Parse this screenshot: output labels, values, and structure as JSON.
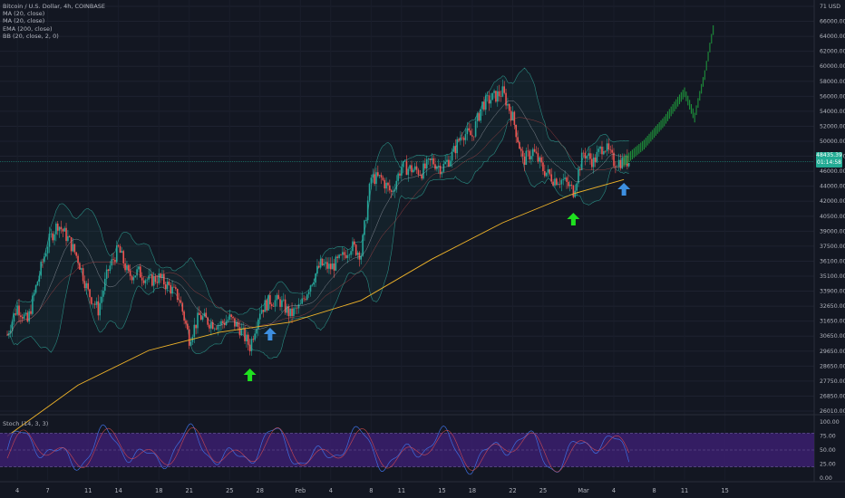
{
  "chart_title": "Bitcoin / U.S. Dollar, 4h, COINBASE",
  "indicators": [
    "MA (20, close)",
    "MA (20, close)",
    "EMA (200, close)",
    "BB (20, close, 2, 0)"
  ],
  "stoch_label": "Stoch (14, 3, 3)",
  "axis_currency": "USD",
  "price_badge": {
    "price": "48435.39",
    "time": "01:14:58"
  },
  "colors": {
    "up": "#26a69a",
    "down": "#ef5350",
    "ema": "#f0b429",
    "bb": "#2a8c83",
    "projection": "#1e8f3a",
    "arrow_green": "#1fe01f",
    "arrow_blue": "#3d8fe0",
    "stoch_k": "#3e6ee0",
    "stoch_d": "#ef5350",
    "stoch_band": "#3b1f6e"
  },
  "chart_data": {
    "type": "candlestick",
    "title": "Bitcoin / U.S. Dollar, 4h, COINBASE",
    "y_ticks": [
      "71 USD",
      "66000.00",
      "64000.00",
      "62000.00",
      "60000.00",
      "58000.00",
      "56000.00",
      "54000.00",
      "52000.00",
      "50000.00",
      "48000.00",
      "46000.00",
      "44000.00",
      "42000.00",
      "40500.00",
      "39000.00",
      "37500.00",
      "36100.00",
      "35100.00",
      "33900.00",
      "32650.00",
      "31650.00",
      "30650.00",
      "29650.00",
      "28650.00",
      "27750.00",
      "26850.00",
      "26010.00"
    ],
    "x_ticks": [
      "4",
      "7",
      "11",
      "14",
      "18",
      "21",
      "25",
      "28",
      "Feb",
      "4",
      "8",
      "11",
      "15",
      "18",
      "22",
      "25",
      "Mar",
      "4",
      "8",
      "11",
      "15"
    ],
    "ylim": [
      26010,
      71000
    ],
    "y_scale": "log",
    "price_path": [
      {
        "x": "3 Jan",
        "y": 31500
      },
      {
        "x": "4 Jan",
        "y": 33800
      },
      {
        "x": "5 Jan",
        "y": 32500
      },
      {
        "x": "6 Jan",
        "y": 36000
      },
      {
        "x": "7 Jan",
        "y": 39500
      },
      {
        "x": "8 Jan",
        "y": 41500
      },
      {
        "x": "9 Jan",
        "y": 40000
      },
      {
        "x": "10 Jan",
        "y": 38000
      },
      {
        "x": "11 Jan",
        "y": 35000
      },
      {
        "x": "12 Jan",
        "y": 33500
      },
      {
        "x": "13 Jan",
        "y": 37000
      },
      {
        "x": "14 Jan",
        "y": 39000
      },
      {
        "x": "15 Jan",
        "y": 36500
      },
      {
        "x": "16 Jan",
        "y": 36800
      },
      {
        "x": "17 Jan",
        "y": 36000
      },
      {
        "x": "18 Jan",
        "y": 36300
      },
      {
        "x": "19 Jan",
        "y": 35500
      },
      {
        "x": "20 Jan",
        "y": 34500
      },
      {
        "x": "21 Jan",
        "y": 31200
      },
      {
        "x": "22 Jan",
        "y": 33000
      },
      {
        "x": "23 Jan",
        "y": 32500
      },
      {
        "x": "24 Jan",
        "y": 32300
      },
      {
        "x": "25 Jan",
        "y": 32800
      },
      {
        "x": "26 Jan",
        "y": 32000
      },
      {
        "x": "27 Jan",
        "y": 30600
      },
      {
        "x": "28 Jan",
        "y": 33500
      },
      {
        "x": "29 Jan",
        "y": 34300
      },
      {
        "x": "30 Jan",
        "y": 34200
      },
      {
        "x": "31 Jan",
        "y": 33100
      },
      {
        "x": "1 Feb",
        "y": 33800
      },
      {
        "x": "2 Feb",
        "y": 35800
      },
      {
        "x": "3 Feb",
        "y": 37500
      },
      {
        "x": "4 Feb",
        "y": 37200
      },
      {
        "x": "5 Feb",
        "y": 38000
      },
      {
        "x": "6 Feb",
        "y": 39300
      },
      {
        "x": "7 Feb",
        "y": 38500
      },
      {
        "x": "8 Feb",
        "y": 46500
      },
      {
        "x": "9 Feb",
        "y": 46400
      },
      {
        "x": "10 Feb",
        "y": 44800
      },
      {
        "x": "11 Feb",
        "y": 47800
      },
      {
        "x": "12 Feb",
        "y": 47500
      },
      {
        "x": "13 Feb",
        "y": 47200
      },
      {
        "x": "14 Feb",
        "y": 48500
      },
      {
        "x": "15 Feb",
        "y": 47600
      },
      {
        "x": "16 Feb",
        "y": 49200
      },
      {
        "x": "17 Feb",
        "y": 52000
      },
      {
        "x": "18 Feb",
        "y": 51600
      },
      {
        "x": "19 Feb",
        "y": 55800
      },
      {
        "x": "20 Feb",
        "y": 56700
      },
      {
        "x": "21 Feb",
        "y": 57500
      },
      {
        "x": "22 Feb",
        "y": 54000
      },
      {
        "x": "23 Feb",
        "y": 48500
      },
      {
        "x": "24 Feb",
        "y": 49700
      },
      {
        "x": "25 Feb",
        "y": 47500
      },
      {
        "x": "26 Feb",
        "y": 46400
      },
      {
        "x": "27 Feb",
        "y": 46200
      },
      {
        "x": "28 Feb",
        "y": 45000
      },
      {
        "x": "1 Mar",
        "y": 49500
      },
      {
        "x": "2 Mar",
        "y": 48400
      },
      {
        "x": "3 Mar",
        "y": 50500
      },
      {
        "x": "4 Mar",
        "y": 48400
      },
      {
        "x": "5 Mar",
        "y": 48435
      }
    ],
    "ema_200": [
      {
        "x": "3 Jan",
        "y": 24500
      },
      {
        "x": "10 Jan",
        "y": 27800
      },
      {
        "x": "17 Jan",
        "y": 30300
      },
      {
        "x": "24 Jan",
        "y": 31700
      },
      {
        "x": "31 Jan",
        "y": 32500
      },
      {
        "x": "7 Feb",
        "y": 34300
      },
      {
        "x": "14 Feb",
        "y": 38000
      },
      {
        "x": "21 Feb",
        "y": 41600
      },
      {
        "x": "28 Feb",
        "y": 44700
      },
      {
        "x": "5 Mar",
        "y": 46300
      }
    ],
    "projection": [
      {
        "x": "5 Mar",
        "y": 48400
      },
      {
        "x": "7 Mar",
        "y": 50500
      },
      {
        "x": "9 Mar",
        "y": 53500
      },
      {
        "x": "11 Mar",
        "y": 57500
      },
      {
        "x": "12 Mar",
        "y": 54000
      },
      {
        "x": "13 Mar",
        "y": 60000
      },
      {
        "x": "14 Mar",
        "y": 68500
      }
    ],
    "annotations": [
      {
        "type": "arrow_up",
        "color": "green",
        "x": "27 Jan"
      },
      {
        "type": "arrow_up",
        "color": "blue",
        "x": "29 Jan"
      },
      {
        "type": "arrow_up",
        "color": "green",
        "x": "28 Feb"
      },
      {
        "type": "arrow_up",
        "color": "blue",
        "x": "5 Mar"
      }
    ],
    "stoch": {
      "y_ticks": [
        "100.00",
        "75.00",
        "50.00",
        "25.00",
        "0.00"
      ],
      "band": [
        20,
        80
      ]
    }
  }
}
